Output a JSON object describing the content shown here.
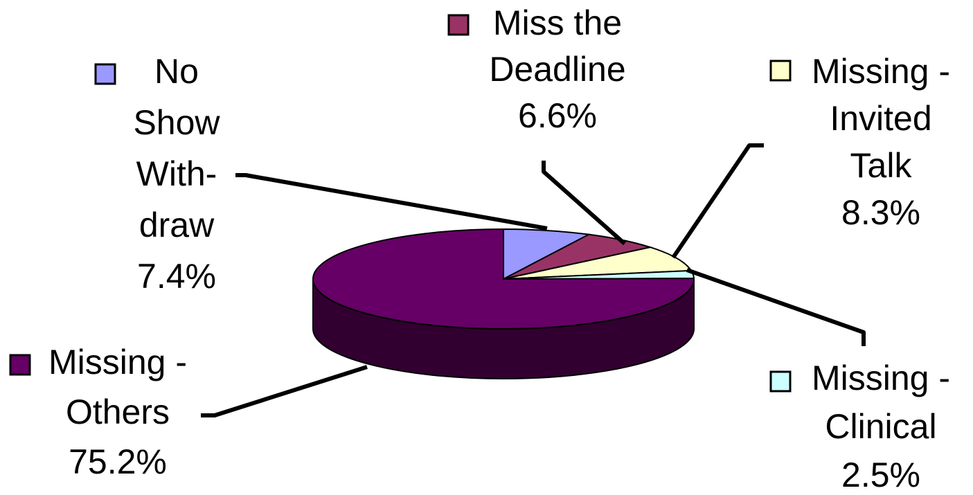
{
  "chart_data": {
    "type": "pie",
    "title": "",
    "slices": [
      {
        "name": "No Show With-draw",
        "lines": [
          "No",
          "Show",
          "With-",
          "draw"
        ],
        "value_label": "7.4%",
        "value": 7.4,
        "color": "#9999ff"
      },
      {
        "name": "Miss the Deadline",
        "lines": [
          "Miss the",
          "Deadline"
        ],
        "value_label": "6.6%",
        "value": 6.6,
        "color": "#993366"
      },
      {
        "name": "Missing - Invited Talk",
        "lines": [
          "Missing -",
          "Invited",
          "Talk"
        ],
        "value_label": "8.3%",
        "value": 8.3,
        "color": "#ffffcc"
      },
      {
        "name": "Missing - Clinical",
        "lines": [
          "Missing -",
          "Clinical"
        ],
        "value_label": "2.5%",
        "value": 2.5,
        "color": "#ccffff"
      },
      {
        "name": "Missing - Others",
        "lines": [
          "Missing -",
          "Others"
        ],
        "value_label": "75.2%",
        "value": 75.2,
        "color": "#660066"
      }
    ],
    "legend": "inline-labels-with-leader-lines",
    "style": "3d-pie"
  }
}
